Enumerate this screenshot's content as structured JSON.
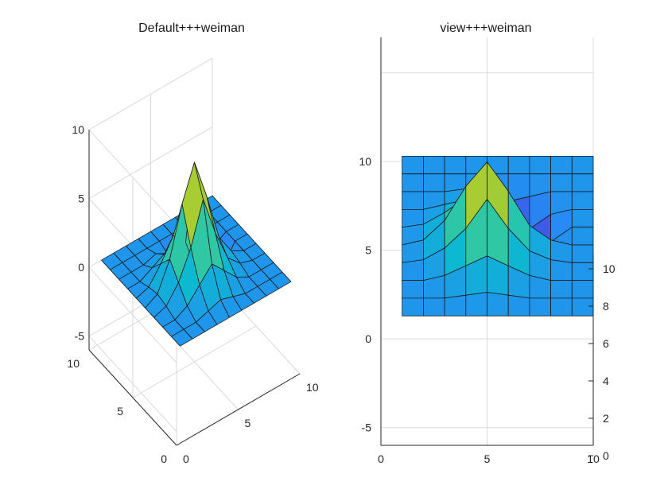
{
  "chart_data": [
    {
      "type": "surface-3d",
      "title": "Default+++weiman",
      "view": "default",
      "x": [
        1,
        2,
        3,
        4,
        5,
        6,
        7,
        8,
        9,
        10
      ],
      "y": [
        1,
        2,
        3,
        4,
        5,
        6,
        7,
        8,
        9,
        10
      ],
      "zlim": [
        -6,
        10
      ],
      "xlim": [
        0,
        10
      ],
      "ylim": [
        0,
        10
      ],
      "x_ticks": [
        0,
        5,
        10
      ],
      "y_ticks": [
        0,
        5,
        10
      ],
      "z_ticks": [
        -5,
        0,
        5,
        10
      ],
      "grid": true,
      "z": [
        [
          0,
          0,
          0,
          0,
          0,
          0,
          0,
          0,
          0,
          0
        ],
        [
          0,
          0,
          0,
          0.3,
          0.6,
          0.3,
          0,
          0,
          0,
          0
        ],
        [
          0,
          0,
          0.5,
          1.5,
          2.5,
          1.5,
          0.5,
          0,
          0,
          0
        ],
        [
          0,
          0.3,
          1.5,
          3.5,
          6.5,
          3.5,
          1.2,
          0.3,
          0,
          0
        ],
        [
          0,
          0.5,
          2.5,
          6,
          8.5,
          5.5,
          2,
          0.5,
          0,
          0
        ],
        [
          0,
          0.3,
          1.5,
          3,
          2,
          -1,
          -4.5,
          -1.5,
          0,
          0
        ],
        [
          0,
          0,
          0.5,
          1,
          -1,
          -3.5,
          -2,
          -0.5,
          0,
          0
        ],
        [
          0,
          0,
          0,
          0.3,
          -0.3,
          -1,
          -0.5,
          0,
          0,
          0
        ],
        [
          0,
          0,
          0,
          0,
          0,
          0,
          0,
          0,
          0,
          0
        ],
        [
          0,
          0,
          0,
          0,
          0,
          0,
          0,
          0,
          0,
          0
        ]
      ]
    },
    {
      "type": "surface-3d",
      "title": "view+++weiman",
      "view": "front",
      "xlim": [
        0,
        10
      ],
      "ylim": [
        -6,
        17
      ],
      "x_ticks": [
        0,
        5,
        10
      ],
      "y_ticks": [
        -5,
        0,
        5,
        10
      ],
      "right_ticks": [
        0,
        2,
        4,
        6,
        8,
        10
      ],
      "grid": true
    }
  ]
}
